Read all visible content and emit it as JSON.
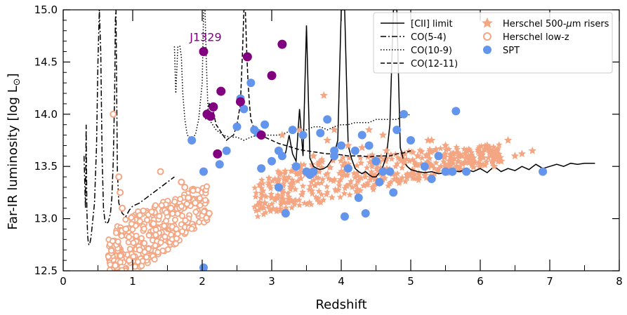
{
  "chart_data": {
    "type": "scatter",
    "xlabel": "Redshift",
    "ylabel": "Far-IR luminosity [log L",
    "ylabel_sub": "⊙",
    "ylabel_end": "]",
    "xlim": [
      0,
      8
    ],
    "ylim": [
      12.5,
      15.0
    ],
    "xticks": [
      "0",
      "1",
      "2",
      "3",
      "4",
      "5",
      "6",
      "7",
      "8"
    ],
    "yticks": [
      "12.5",
      "13.0",
      "13.5",
      "14.0",
      "14.5",
      "15.0"
    ],
    "grid": false,
    "legend_position": "top-right",
    "annotation": {
      "text": "J1329",
      "x": 2.05,
      "y": 14.7
    },
    "colors": {
      "herschel_risers": "#f4a582",
      "herschel_lowz": "#f4a582",
      "spt": "#6495ed",
      "highlight": "#800080"
    },
    "legend": {
      "left": [
        {
          "label": "[CII] limit",
          "style": "solid"
        },
        {
          "label": "CO(5-4)",
          "style": "dashdot"
        },
        {
          "label": "CO(10-9)",
          "style": "dotted"
        },
        {
          "label": "CO(12-11)",
          "style": "dashed"
        }
      ],
      "right": [
        {
          "label": "Herschel 500-",
          "mu": "μ",
          "unit": "m risers",
          "marker": "star"
        },
        {
          "label": "Herschel low-z",
          "marker": "open-circle"
        },
        {
          "label": "SPT",
          "marker": "circle"
        }
      ]
    },
    "series": [
      {
        "name": "[CII] limit",
        "kind": "line",
        "style": "solid",
        "x": [
          3.15,
          3.2,
          3.25,
          3.3,
          3.35,
          3.4,
          3.45,
          3.5,
          3.55,
          3.6,
          3.65,
          3.7,
          3.75,
          3.8,
          3.85,
          3.9,
          3.95,
          4.0,
          4.05,
          4.1,
          4.15,
          4.2,
          4.25,
          4.3,
          4.35,
          4.4,
          4.45,
          4.5,
          4.55,
          4.6,
          4.65,
          4.7,
          4.75,
          4.8,
          4.85,
          4.9,
          4.95,
          5.0,
          5.1,
          5.2,
          5.3,
          5.4,
          5.5,
          5.6,
          5.7,
          5.8,
          5.9,
          6.0,
          6.1,
          6.2,
          6.3,
          6.4,
          6.5,
          6.6,
          6.7,
          6.8,
          6.9,
          7.0,
          7.1,
          7.2,
          7.3,
          7.4,
          7.5,
          7.65
        ],
        "y": [
          13.6,
          13.63,
          13.8,
          13.62,
          13.55,
          14.05,
          13.6,
          14.85,
          13.58,
          13.5,
          13.48,
          13.47,
          13.48,
          13.5,
          13.55,
          13.62,
          13.75,
          15.0,
          15.0,
          13.7,
          13.57,
          13.48,
          13.45,
          13.43,
          13.45,
          13.42,
          13.4,
          13.4,
          13.44,
          13.5,
          13.6,
          13.9,
          15.0,
          15.0,
          13.68,
          13.55,
          13.5,
          13.47,
          13.45,
          13.44,
          13.45,
          13.43,
          13.44,
          13.46,
          13.45,
          13.47,
          13.45,
          13.48,
          13.44,
          13.5,
          13.45,
          13.48,
          13.46,
          13.5,
          13.47,
          13.52,
          13.48,
          13.5,
          13.52,
          13.5,
          13.53,
          13.52,
          13.53,
          13.53
        ]
      },
      {
        "name": "CO(5-4)",
        "kind": "line",
        "style": "dashdot",
        "x": [
          0.3,
          0.32,
          0.33,
          0.34,
          0.35,
          0.36,
          0.37,
          0.38,
          0.4,
          0.42,
          0.45,
          0.48,
          0.5,
          0.52,
          0.54,
          0.56,
          0.58,
          0.6,
          0.62,
          0.65,
          0.68,
          0.7,
          0.72,
          0.74,
          0.75,
          0.76,
          0.77,
          0.78,
          0.8,
          0.85,
          0.9,
          0.95,
          1.0,
          1.1,
          1.2,
          1.3,
          1.4,
          1.5,
          1.6
        ],
        "y": [
          13.6,
          13.1,
          13.9,
          13.1,
          12.85,
          12.78,
          12.75,
          12.75,
          12.82,
          12.95,
          13.15,
          13.7,
          14.5,
          15.0,
          14.6,
          13.6,
          13.1,
          12.98,
          12.95,
          12.97,
          13.05,
          13.2,
          13.55,
          14.2,
          14.9,
          15.0,
          14.2,
          13.45,
          13.15,
          13.05,
          13.02,
          13.08,
          13.12,
          13.15,
          13.2,
          13.25,
          13.3,
          13.35,
          13.4
        ]
      },
      {
        "name": "CO(10-9)",
        "kind": "line",
        "style": "dotted",
        "x": [
          1.6,
          1.62,
          1.65,
          1.68,
          1.7,
          1.72,
          1.75,
          1.78,
          1.8,
          1.85,
          1.9,
          1.95,
          2.0,
          2.02,
          2.04,
          2.06,
          2.08,
          2.1,
          2.15,
          2.2,
          2.3,
          2.4,
          2.5,
          2.6,
          2.7,
          2.8,
          2.9,
          3.0,
          3.1,
          3.2,
          3.3,
          3.4,
          3.5,
          3.6,
          3.7,
          3.8,
          3.9,
          4.0,
          4.1,
          4.2,
          4.3,
          4.4,
          4.5,
          4.6,
          4.7,
          4.8,
          4.9,
          5.0
        ],
        "y": [
          14.65,
          14.2,
          14.65,
          14.65,
          14.55,
          14.2,
          13.95,
          13.82,
          13.78,
          13.78,
          13.8,
          13.95,
          14.3,
          15.0,
          15.0,
          14.5,
          14.1,
          13.95,
          13.9,
          13.85,
          13.8,
          13.78,
          13.78,
          13.75,
          13.78,
          13.8,
          13.8,
          13.8,
          13.8,
          13.82,
          13.85,
          13.85,
          13.85,
          13.88,
          13.88,
          13.85,
          13.88,
          13.9,
          13.9,
          13.92,
          13.92,
          13.92,
          13.95,
          13.95,
          13.95,
          13.95,
          13.98,
          14.0
        ]
      },
      {
        "name": "CO(12-11)",
        "kind": "line",
        "style": "dashed",
        "x": [
          2.05,
          2.1,
          2.15,
          2.2,
          2.25,
          2.3,
          2.35,
          2.4,
          2.45,
          2.5,
          2.55,
          2.58,
          2.6,
          2.62,
          2.64,
          2.66,
          2.68,
          2.7,
          2.75,
          2.8,
          2.9,
          3.0,
          3.1,
          3.2,
          3.3,
          3.4,
          3.5,
          3.6,
          3.7,
          3.8,
          3.9,
          4.0,
          4.1,
          4.2,
          4.3,
          4.4,
          4.5,
          4.6,
          4.7,
          4.8,
          4.9,
          5.0
        ],
        "y": [
          13.95,
          14.1,
          14.05,
          13.9,
          13.85,
          13.8,
          13.75,
          13.78,
          13.8,
          13.9,
          14.1,
          14.6,
          15.0,
          15.0,
          14.6,
          14.3,
          14.1,
          13.95,
          13.85,
          13.8,
          13.78,
          13.75,
          13.72,
          13.7,
          13.68,
          13.66,
          13.65,
          13.64,
          13.63,
          13.62,
          13.62,
          13.61,
          13.6,
          13.6,
          13.6,
          13.59,
          13.6,
          13.6,
          13.6,
          13.62,
          13.63,
          13.65
        ]
      },
      {
        "name": "Herschel 500-μm risers",
        "kind": "scatter",
        "marker": "star",
        "x": [
          3.15,
          3.4,
          3.6,
          3.75,
          3.9,
          4.1,
          4.3,
          4.4,
          4.6,
          4.9,
          5.1,
          5.3,
          5.5,
          5.6,
          5.8,
          5.9,
          6.0,
          6.1,
          6.2,
          6.3,
          6.4,
          6.5,
          6.6,
          6.75,
          3.8,
          3.0,
          2.9,
          4.65,
          5.25
        ],
        "y": [
          13.8,
          13.85,
          13.6,
          14.18,
          13.85,
          13.7,
          13.68,
          13.85,
          13.8,
          13.55,
          13.6,
          13.75,
          13.7,
          13.55,
          13.65,
          13.55,
          13.6,
          13.7,
          13.5,
          13.55,
          13.75,
          13.6,
          13.62,
          13.65,
          13.75,
          13.2,
          13.15,
          13.65,
          13.75
        ]
      },
      {
        "name": "Herschel low-z",
        "kind": "scatter",
        "marker": "open-circle",
        "x": [
          0.72,
          0.8,
          0.82,
          0.85,
          0.9,
          1.1,
          1.4,
          1.7,
          1.75,
          1.8,
          1.9,
          2.1,
          0.95,
          1.3,
          1.55,
          0.75
        ],
        "y": [
          14.0,
          13.4,
          13.25,
          13.1,
          12.9,
          12.7,
          13.45,
          13.35,
          13.3,
          13.2,
          13.15,
          13.05,
          12.6,
          12.95,
          13.1,
          12.55
        ]
      },
      {
        "name": "SPT",
        "kind": "scatter",
        "marker": "circle",
        "x": [
          1.85,
          2.02,
          2.25,
          2.35,
          2.5,
          2.55,
          2.6,
          2.7,
          2.75,
          2.8,
          2.9,
          3.1,
          3.15,
          3.3,
          3.35,
          3.5,
          3.6,
          3.7,
          3.8,
          3.9,
          4.0,
          4.1,
          4.2,
          4.3,
          4.4,
          4.5,
          4.6,
          4.7,
          4.8,
          4.9,
          5.0,
          5.2,
          5.3,
          5.4,
          5.5,
          5.6,
          5.65,
          5.8,
          6.9,
          2.02,
          3.0,
          3.1,
          3.45,
          3.9,
          4.25,
          4.55,
          4.75,
          2.85,
          3.55,
          3.2,
          4.05,
          4.35
        ],
        "y": [
          13.75,
          13.45,
          13.52,
          13.65,
          13.88,
          14.15,
          14.05,
          14.3,
          13.85,
          13.82,
          13.9,
          13.65,
          13.6,
          13.85,
          13.5,
          13.45,
          13.45,
          13.82,
          13.95,
          13.65,
          13.7,
          13.48,
          13.65,
          13.8,
          13.7,
          13.55,
          13.45,
          13.45,
          13.85,
          14.0,
          13.75,
          13.5,
          13.38,
          13.6,
          13.45,
          13.45,
          14.03,
          13.45,
          13.45,
          12.53,
          13.55,
          13.3,
          13.8,
          13.6,
          13.2,
          13.35,
          13.25,
          13.48,
          13.42,
          13.05,
          13.02,
          13.05
        ]
      },
      {
        "name": "J1329 host candidates",
        "kind": "scatter",
        "marker": "circle-highlight",
        "x": [
          2.02,
          2.07,
          2.12,
          2.16,
          2.22,
          2.27,
          2.55,
          2.65,
          2.85,
          3.0,
          3.15
        ],
        "y": [
          14.6,
          14.0,
          13.98,
          14.07,
          13.62,
          14.22,
          14.12,
          14.55,
          13.8,
          14.37,
          14.67
        ]
      }
    ],
    "clouds": [
      {
        "name": "Herschel low-z cloud",
        "marker": "open-circle",
        "band": [
          [
            0.65,
            12.5,
            12.8
          ],
          [
            0.8,
            12.5,
            12.95
          ],
          [
            1.0,
            12.5,
            13.05
          ],
          [
            1.2,
            12.55,
            13.1
          ],
          [
            1.4,
            12.65,
            13.15
          ],
          [
            1.6,
            12.75,
            13.22
          ],
          [
            1.8,
            12.85,
            13.28
          ],
          [
            2.0,
            12.95,
            13.3
          ],
          [
            2.1,
            13.0,
            13.32
          ]
        ]
      },
      {
        "name": "Herschel risers cloud",
        "marker": "star",
        "band": [
          [
            2.75,
            13.0,
            13.35
          ],
          [
            3.0,
            13.05,
            13.45
          ],
          [
            3.5,
            13.12,
            13.55
          ],
          [
            4.0,
            13.2,
            13.6
          ],
          [
            4.5,
            13.28,
            13.62
          ],
          [
            5.0,
            13.35,
            13.65
          ],
          [
            5.5,
            13.42,
            13.68
          ],
          [
            6.0,
            13.5,
            13.7
          ],
          [
            6.3,
            13.55,
            13.72
          ]
        ]
      }
    ]
  }
}
